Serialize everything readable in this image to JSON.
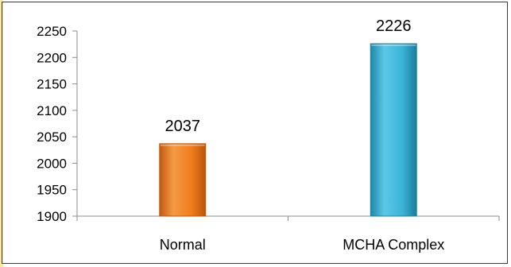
{
  "chart_data": {
    "type": "bar",
    "categories": [
      "Normal",
      "MCHA Complex"
    ],
    "values": [
      2037,
      2226
    ],
    "data_labels": [
      "2037",
      "2226"
    ],
    "title": "",
    "xlabel": "",
    "ylabel": "",
    "ylim": [
      1900,
      2250
    ],
    "yticks": [
      "1900",
      "1950",
      "2000",
      "2050",
      "2100",
      "2150",
      "2200",
      "2250"
    ],
    "ytick_values": [
      1900,
      1950,
      2000,
      2050,
      2100,
      2150,
      2200,
      2250
    ],
    "grid": false,
    "legend": "none",
    "colors": [
      "#f07c1b",
      "#3ab2d6"
    ],
    "colors_dark": [
      "#c25a0e",
      "#1f86a8"
    ]
  }
}
